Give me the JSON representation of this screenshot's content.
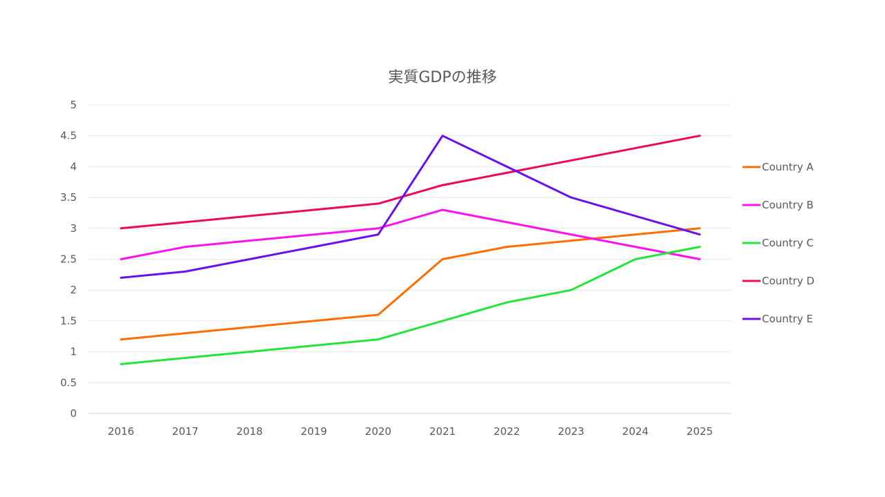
{
  "chart_data": {
    "type": "line",
    "title": "実質GDPの推移",
    "xlabel": "",
    "ylabel": "",
    "categories": [
      "2016",
      "2017",
      "2018",
      "2019",
      "2020",
      "2021",
      "2022",
      "2023",
      "2024",
      "2025"
    ],
    "ylim": [
      0,
      5
    ],
    "yticks": [
      "0",
      "0.5",
      "1",
      "1.5",
      "2",
      "2.5",
      "3",
      "3.5",
      "4",
      "4.5",
      "5"
    ],
    "grid": true,
    "legend_position": "right",
    "series": [
      {
        "name": "Country A",
        "color": "#ff6d00",
        "values": [
          1.2,
          1.3,
          1.4,
          1.5,
          1.6,
          2.5,
          2.7,
          2.8,
          2.9,
          3.0
        ]
      },
      {
        "name": "Country B",
        "color": "#ff10f0",
        "values": [
          2.5,
          2.7,
          2.8,
          2.9,
          3.0,
          3.3,
          3.1,
          2.9,
          2.7,
          2.5
        ]
      },
      {
        "name": "Country C",
        "color": "#22e53a",
        "values": [
          0.8,
          0.9,
          1.0,
          1.1,
          1.2,
          1.5,
          1.8,
          2.0,
          2.5,
          2.7
        ]
      },
      {
        "name": "Country D",
        "color": "#f0075a",
        "values": [
          3.0,
          3.1,
          3.2,
          3.3,
          3.4,
          3.7,
          3.9,
          4.1,
          4.3,
          4.5
        ]
      },
      {
        "name": "Country E",
        "color": "#6a0ff0",
        "values": [
          2.2,
          2.3,
          2.5,
          2.7,
          2.9,
          4.5,
          4.0,
          3.5,
          3.2,
          2.9
        ]
      }
    ]
  },
  "colors": {
    "grid": "#e6e6e6",
    "axis": "#d0d0d0",
    "text": "#595959"
  }
}
